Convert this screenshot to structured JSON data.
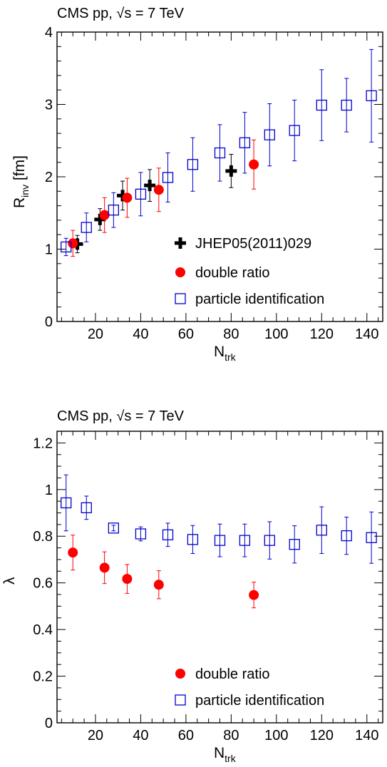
{
  "chart_data": [
    {
      "type": "scatter",
      "header": "CMS pp, √s = 7 TeV",
      "xlabel": "N",
      "xlabel_sub": "trk",
      "ylabel": "R",
      "ylabel_sub": "inv",
      "ylabel_unit": " [fm]",
      "xlim": [
        3,
        147
      ],
      "ylim": [
        0,
        4
      ],
      "xticks": [
        20,
        40,
        60,
        80,
        100,
        120,
        140
      ],
      "yticks": [
        0,
        1,
        2,
        3,
        4
      ],
      "series": [
        {
          "name": "JHEP05(2011)029",
          "marker": "cross",
          "color": "#000000",
          "points": [
            {
              "x": 12,
              "y": 1.07,
              "err": 0.12
            },
            {
              "x": 22,
              "y": 1.41,
              "err": 0.15
            },
            {
              "x": 32,
              "y": 1.74,
              "err": 0.2
            },
            {
              "x": 44,
              "y": 1.88,
              "err": 0.22
            },
            {
              "x": 80,
              "y": 2.08,
              "err": 0.23
            }
          ]
        },
        {
          "name": "double ratio",
          "marker": "circle",
          "color": "#ff0000",
          "points": [
            {
              "x": 10,
              "y": 1.08,
              "err": 0.18
            },
            {
              "x": 24,
              "y": 1.47,
              "err": 0.24
            },
            {
              "x": 34,
              "y": 1.71,
              "err": 0.27
            },
            {
              "x": 48,
              "y": 1.82,
              "err": 0.3
            },
            {
              "x": 90,
              "y": 2.17,
              "err": 0.34
            }
          ]
        },
        {
          "name": "particle identification",
          "marker": "open-square",
          "color": "#0000cc",
          "points": [
            {
              "x": 7,
              "y": 1.03,
              "err": 0.12
            },
            {
              "x": 16,
              "y": 1.3,
              "err": 0.2
            },
            {
              "x": 28,
              "y": 1.54,
              "err": 0.24
            },
            {
              "x": 40,
              "y": 1.76,
              "err": 0.3
            },
            {
              "x": 52,
              "y": 1.99,
              "err": 0.34
            },
            {
              "x": 63,
              "y": 2.17,
              "err": 0.37
            },
            {
              "x": 75,
              "y": 2.33,
              "err": 0.39
            },
            {
              "x": 86,
              "y": 2.47,
              "err": 0.42
            },
            {
              "x": 97,
              "y": 2.58,
              "err": 0.43
            },
            {
              "x": 108,
              "y": 2.64,
              "err": 0.42
            },
            {
              "x": 120,
              "y": 2.99,
              "err": 0.49
            },
            {
              "x": 131,
              "y": 2.99,
              "err": 0.37
            },
            {
              "x": 142,
              "y": 3.12,
              "err": 0.64
            }
          ]
        }
      ],
      "legend_position": "bottom-right"
    },
    {
      "type": "scatter",
      "header": "CMS pp, √s = 7 TeV",
      "xlabel": "N",
      "xlabel_sub": "trk",
      "ylabel": "λ",
      "xlim": [
        3,
        147
      ],
      "ylim": [
        0,
        1.25
      ],
      "xticks": [
        20,
        40,
        60,
        80,
        100,
        120,
        140
      ],
      "yticks": [
        0,
        0.2,
        0.4,
        0.6,
        0.8,
        1,
        1.2
      ],
      "series": [
        {
          "name": "double ratio",
          "marker": "circle",
          "color": "#ff0000",
          "points": [
            {
              "x": 10,
              "y": 0.73,
              "err": 0.075
            },
            {
              "x": 24,
              "y": 0.665,
              "err": 0.068
            },
            {
              "x": 34,
              "y": 0.617,
              "err": 0.062
            },
            {
              "x": 48,
              "y": 0.592,
              "err": 0.06
            },
            {
              "x": 90,
              "y": 0.548,
              "err": 0.055
            }
          ]
        },
        {
          "name": "particle identification",
          "marker": "open-square",
          "color": "#0000cc",
          "points": [
            {
              "x": 7,
              "y": 0.943,
              "err": 0.12
            },
            {
              "x": 16,
              "y": 0.922,
              "err": 0.05
            },
            {
              "x": 28,
              "y": 0.835,
              "err": 0.012
            },
            {
              "x": 40,
              "y": 0.81,
              "err": 0.03
            },
            {
              "x": 52,
              "y": 0.806,
              "err": 0.05
            },
            {
              "x": 63,
              "y": 0.786,
              "err": 0.06
            },
            {
              "x": 75,
              "y": 0.782,
              "err": 0.07
            },
            {
              "x": 86,
              "y": 0.782,
              "err": 0.07
            },
            {
              "x": 97,
              "y": 0.782,
              "err": 0.08
            },
            {
              "x": 108,
              "y": 0.765,
              "err": 0.08
            },
            {
              "x": 120,
              "y": 0.826,
              "err": 0.1
            },
            {
              "x": 131,
              "y": 0.802,
              "err": 0.08
            },
            {
              "x": 142,
              "y": 0.794,
              "err": 0.11
            }
          ]
        }
      ],
      "legend_position": "bottom-right"
    }
  ]
}
